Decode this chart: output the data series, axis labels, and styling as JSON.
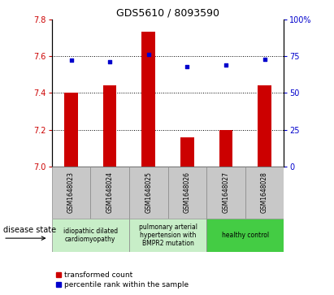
{
  "title": "GDS5610 / 8093590",
  "samples": [
    "GSM1648023",
    "GSM1648024",
    "GSM1648025",
    "GSM1648026",
    "GSM1648027",
    "GSM1648028"
  ],
  "red_values": [
    7.4,
    7.44,
    7.73,
    7.16,
    7.2,
    7.44
  ],
  "blue_values": [
    72,
    71,
    76,
    68,
    69,
    73
  ],
  "ylim_left": [
    7.0,
    7.8
  ],
  "ylim_right": [
    0,
    100
  ],
  "yticks_left": [
    7.0,
    7.2,
    7.4,
    7.6,
    7.8
  ],
  "yticks_right": [
    0,
    25,
    50,
    75,
    100
  ],
  "ytick_labels_right": [
    "0",
    "25",
    "50",
    "75",
    "100%"
  ],
  "bar_color": "#cc0000",
  "dot_color": "#0000cc",
  "bar_base": 7.0,
  "grid_lines": [
    7.2,
    7.4,
    7.6
  ],
  "groups": [
    {
      "start": 0,
      "end": 1,
      "label": "idiopathic dilated\ncardiomyopathy",
      "color": "#c8eec8"
    },
    {
      "start": 2,
      "end": 3,
      "label": "pulmonary arterial\nhypertension with\nBMPR2 mutation",
      "color": "#c8eec8"
    },
    {
      "start": 4,
      "end": 5,
      "label": "healthy control",
      "color": "#44cc44"
    }
  ],
  "legend_red_label": "transformed count",
  "legend_blue_label": "percentile rank within the sample",
  "disease_state_label": "disease state",
  "left_axis_color": "#cc0000",
  "right_axis_color": "#0000cc",
  "gray_box_color": "#c8c8c8",
  "title_fontsize": 9,
  "tick_fontsize": 7,
  "sample_fontsize": 5.5,
  "group_fontsize": 5.5,
  "legend_fontsize": 6.5,
  "disease_state_fontsize": 7
}
